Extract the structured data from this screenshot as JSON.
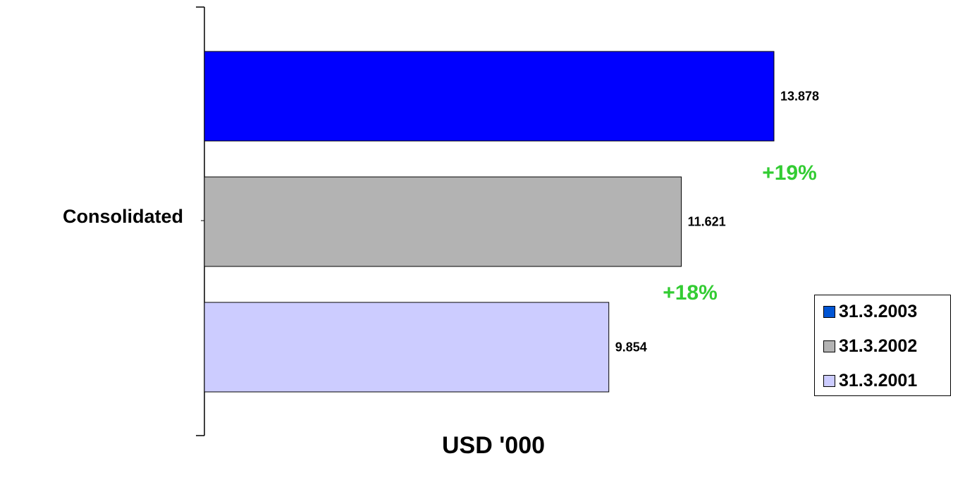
{
  "chart_data": {
    "type": "bar",
    "orientation": "horizontal",
    "categories": [
      "Consolidated"
    ],
    "series": [
      {
        "name": "31.3.2003",
        "values": [
          13.878
        ],
        "label": "13.878",
        "color": "#0000ff"
      },
      {
        "name": "31.3.2002",
        "values": [
          11.621
        ],
        "label": "11.621",
        "color": "#b3b3b3"
      },
      {
        "name": "31.3.2001",
        "values": [
          9.854
        ],
        "label": "9.854",
        "color": "#ccccff"
      }
    ],
    "annotations": [
      {
        "text": "+19%",
        "color": "#33cc33"
      },
      {
        "text": "+18%",
        "color": "#33cc33"
      }
    ],
    "xlabel": "USD '000",
    "ylabel": "",
    "title": "",
    "grid": false,
    "legend_position": "bottom-right",
    "legend": [
      {
        "label": "31.3.2003",
        "color": "#0055d4"
      },
      {
        "label": "31.3.2002",
        "color": "#b3b3b3"
      },
      {
        "label": "31.3.2001",
        "color": "#ccccff"
      }
    ]
  }
}
